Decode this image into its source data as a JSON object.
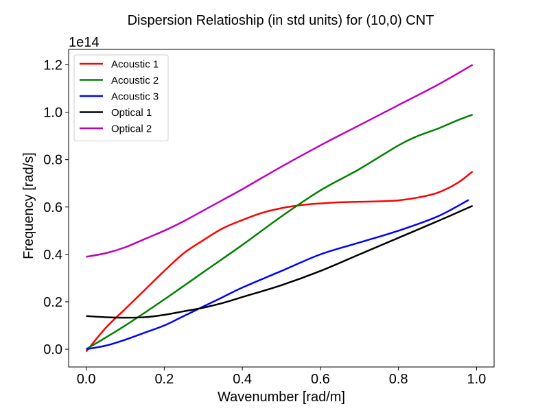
{
  "chart_data": {
    "type": "line",
    "title": "Dispersion Relatioship (in std units) for (10,0) CNT",
    "xlabel": "Wavenumber [rad/m]",
    "ylabel": "Frequency [rad/s]",
    "y_offset_label": "1e14",
    "y_scale": 100000000000000.0,
    "xlim": [
      -0.045,
      1.045
    ],
    "ylim": [
      -0.075,
      1.265
    ],
    "x_ticks": [
      0.0,
      0.2,
      0.4,
      0.6,
      0.8,
      1.0
    ],
    "x_tick_labels": [
      "0.0",
      "0.2",
      "0.4",
      "0.6",
      "0.8",
      "1.0"
    ],
    "y_ticks": [
      0.0,
      0.2,
      0.4,
      0.6,
      0.8,
      1.0,
      1.2
    ],
    "y_tick_labels": [
      "0.0",
      "0.2",
      "0.4",
      "0.6",
      "0.8",
      "1.0",
      "1.2"
    ],
    "grid": false,
    "legend_position": "upper-left",
    "series": [
      {
        "name": "Acoustic 1",
        "color": "#ff0000",
        "x": [
          0.0,
          0.05,
          0.1,
          0.15,
          0.2,
          0.25,
          0.3,
          0.35,
          0.4,
          0.45,
          0.5,
          0.55,
          0.6,
          0.65,
          0.7,
          0.75,
          0.8,
          0.85,
          0.9,
          0.95,
          0.99
        ],
        "y": [
          -0.01,
          0.09,
          0.17,
          0.25,
          0.33,
          0.405,
          0.46,
          0.51,
          0.545,
          0.575,
          0.595,
          0.608,
          0.615,
          0.62,
          0.622,
          0.624,
          0.628,
          0.64,
          0.66,
          0.7,
          0.75
        ]
      },
      {
        "name": "Acoustic 2",
        "color": "#008000",
        "x": [
          0.0,
          0.1,
          0.2,
          0.3,
          0.4,
          0.5,
          0.6,
          0.7,
          0.8,
          0.85,
          0.9,
          0.95,
          0.99
        ],
        "y": [
          0.0,
          0.1,
          0.21,
          0.325,
          0.44,
          0.56,
          0.67,
          0.76,
          0.86,
          0.9,
          0.93,
          0.965,
          0.99
        ]
      },
      {
        "name": "Acoustic 3",
        "color": "#0000ff",
        "x": [
          0.0,
          0.05,
          0.1,
          0.15,
          0.2,
          0.25,
          0.3,
          0.35,
          0.4,
          0.5,
          0.6,
          0.7,
          0.8,
          0.9,
          0.98
        ],
        "y": [
          0.0,
          0.015,
          0.04,
          0.07,
          0.1,
          0.14,
          0.18,
          0.22,
          0.26,
          0.33,
          0.4,
          0.45,
          0.5,
          0.56,
          0.63
        ]
      },
      {
        "name": "Optical 1",
        "color": "#000000",
        "x": [
          0.0,
          0.05,
          0.1,
          0.15,
          0.2,
          0.25,
          0.3,
          0.35,
          0.4,
          0.5,
          0.6,
          0.7,
          0.8,
          0.9,
          0.99
        ],
        "y": [
          0.14,
          0.135,
          0.133,
          0.135,
          0.145,
          0.16,
          0.175,
          0.195,
          0.22,
          0.27,
          0.33,
          0.4,
          0.47,
          0.54,
          0.605
        ]
      },
      {
        "name": "Optical 2",
        "color": "#bf00bf",
        "x": [
          0.0,
          0.05,
          0.1,
          0.15,
          0.2,
          0.25,
          0.3,
          0.35,
          0.4,
          0.5,
          0.6,
          0.7,
          0.8,
          0.9,
          0.99
        ],
        "y": [
          0.39,
          0.405,
          0.43,
          0.465,
          0.5,
          0.54,
          0.585,
          0.63,
          0.675,
          0.77,
          0.86,
          0.945,
          1.03,
          1.115,
          1.2
        ]
      }
    ]
  }
}
